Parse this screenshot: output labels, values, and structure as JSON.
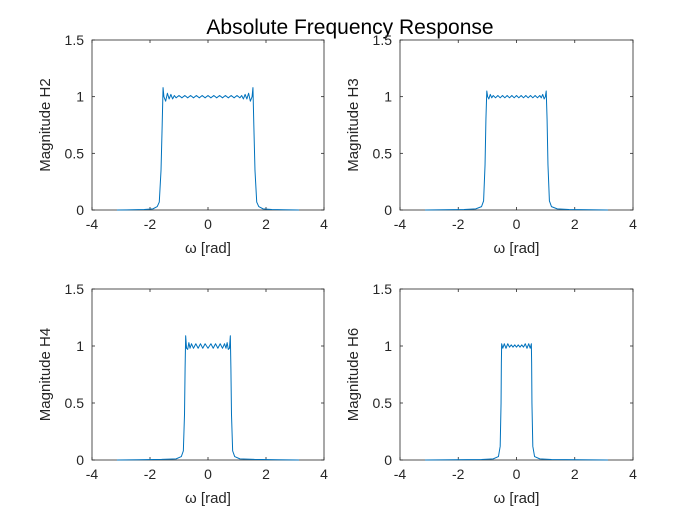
{
  "figure": {
    "title": "Absolute Frequency Response"
  },
  "colors": {
    "line": "#0072bd",
    "axes": "#262626",
    "background": "#ffffff"
  },
  "chart_data": [
    {
      "type": "line",
      "xlabel": "ω [rad]",
      "ylabel": "Magnitude H2",
      "xlim": [
        -4,
        4
      ],
      "ylim": [
        0,
        1.5
      ],
      "xticks": [
        "-4",
        "-2",
        "0",
        "2",
        "4"
      ],
      "yticks": [
        "0",
        "0.5",
        "1",
        "1.5"
      ],
      "series": [
        {
          "points": [
            [
              -3.14,
              0.0
            ],
            [
              -2.6,
              0.002
            ],
            [
              -2.2,
              0.004
            ],
            [
              -1.9,
              0.01
            ],
            [
              -1.75,
              0.03
            ],
            [
              -1.68,
              0.07
            ],
            [
              -1.62,
              0.35
            ],
            [
              -1.58,
              0.75
            ],
            [
              -1.55,
              1.08
            ],
            [
              -1.52,
              1.0
            ],
            [
              -1.46,
              0.96
            ],
            [
              -1.4,
              1.03
            ],
            [
              -1.34,
              0.98
            ],
            [
              -1.28,
              1.02
            ],
            [
              -1.22,
              0.98
            ],
            [
              -1.16,
              1.01
            ],
            [
              -1.1,
              0.99
            ],
            [
              -1.0,
              1.01
            ],
            [
              -0.9,
              0.99
            ],
            [
              -0.8,
              1.01
            ],
            [
              -0.7,
              0.99
            ],
            [
              -0.6,
              1.01
            ],
            [
              -0.5,
              0.99
            ],
            [
              -0.4,
              1.01
            ],
            [
              -0.3,
              0.99
            ],
            [
              -0.2,
              1.01
            ],
            [
              -0.1,
              0.99
            ],
            [
              0.0,
              1.01
            ],
            [
              0.1,
              0.99
            ],
            [
              0.2,
              1.01
            ],
            [
              0.3,
              0.99
            ],
            [
              0.4,
              1.01
            ],
            [
              0.5,
              0.99
            ],
            [
              0.6,
              1.01
            ],
            [
              0.7,
              0.99
            ],
            [
              0.8,
              1.01
            ],
            [
              0.9,
              0.99
            ],
            [
              1.0,
              1.01
            ],
            [
              1.1,
              0.99
            ],
            [
              1.16,
              1.01
            ],
            [
              1.22,
              0.98
            ],
            [
              1.28,
              1.02
            ],
            [
              1.34,
              0.98
            ],
            [
              1.4,
              1.03
            ],
            [
              1.46,
              0.96
            ],
            [
              1.52,
              1.0
            ],
            [
              1.55,
              1.08
            ],
            [
              1.58,
              0.75
            ],
            [
              1.62,
              0.35
            ],
            [
              1.68,
              0.07
            ],
            [
              1.75,
              0.03
            ],
            [
              1.9,
              0.01
            ],
            [
              2.2,
              0.004
            ],
            [
              2.6,
              0.002
            ],
            [
              3.14,
              0.0
            ]
          ]
        }
      ]
    },
    {
      "type": "line",
      "xlabel": "ω [rad]",
      "ylabel": "Magnitude H3",
      "xlim": [
        -4,
        4
      ],
      "ylim": [
        0,
        1.5
      ],
      "xticks": [
        "-4",
        "-2",
        "0",
        "2",
        "4"
      ],
      "yticks": [
        "0",
        "0.5",
        "1",
        "1.5"
      ],
      "series": [
        {
          "points": [
            [
              -3.14,
              0.0
            ],
            [
              -2.5,
              0.002
            ],
            [
              -1.8,
              0.004
            ],
            [
              -1.4,
              0.01
            ],
            [
              -1.2,
              0.03
            ],
            [
              -1.13,
              0.08
            ],
            [
              -1.08,
              0.4
            ],
            [
              -1.05,
              0.8
            ],
            [
              -1.02,
              1.05
            ],
            [
              -0.99,
              1.0
            ],
            [
              -0.95,
              0.98
            ],
            [
              -0.9,
              1.02
            ],
            [
              -0.85,
              0.99
            ],
            [
              -0.8,
              1.01
            ],
            [
              -0.72,
              0.99
            ],
            [
              -0.64,
              1.01
            ],
            [
              -0.56,
              0.99
            ],
            [
              -0.48,
              1.01
            ],
            [
              -0.4,
              0.99
            ],
            [
              -0.32,
              1.01
            ],
            [
              -0.24,
              0.99
            ],
            [
              -0.16,
              1.01
            ],
            [
              -0.08,
              0.99
            ],
            [
              0.0,
              1.01
            ],
            [
              0.08,
              0.99
            ],
            [
              0.16,
              1.01
            ],
            [
              0.24,
              0.99
            ],
            [
              0.32,
              1.01
            ],
            [
              0.4,
              0.99
            ],
            [
              0.48,
              1.01
            ],
            [
              0.56,
              0.99
            ],
            [
              0.64,
              1.01
            ],
            [
              0.72,
              0.99
            ],
            [
              0.8,
              1.01
            ],
            [
              0.85,
              0.99
            ],
            [
              0.9,
              1.02
            ],
            [
              0.95,
              0.98
            ],
            [
              0.99,
              1.0
            ],
            [
              1.02,
              1.05
            ],
            [
              1.05,
              0.8
            ],
            [
              1.08,
              0.4
            ],
            [
              1.13,
              0.08
            ],
            [
              1.2,
              0.03
            ],
            [
              1.4,
              0.01
            ],
            [
              1.8,
              0.004
            ],
            [
              2.5,
              0.002
            ],
            [
              3.14,
              0.0
            ]
          ]
        }
      ]
    },
    {
      "type": "line",
      "xlabel": "ω [rad]",
      "ylabel": "Magnitude H4",
      "xlim": [
        -4,
        4
      ],
      "ylim": [
        0,
        1.5
      ],
      "xticks": [
        "-4",
        "-2",
        "0",
        "2",
        "4"
      ],
      "yticks": [
        "0",
        "0.5",
        "1",
        "1.5"
      ],
      "series": [
        {
          "points": [
            [
              -3.14,
              0.0
            ],
            [
              -2.4,
              0.002
            ],
            [
              -1.6,
              0.005
            ],
            [
              -1.1,
              0.01
            ],
            [
              -0.92,
              0.03
            ],
            [
              -0.85,
              0.08
            ],
            [
              -0.81,
              0.4
            ],
            [
              -0.79,
              0.8
            ],
            [
              -0.77,
              1.09
            ],
            [
              -0.74,
              0.98
            ],
            [
              -0.7,
              0.97
            ],
            [
              -0.66,
              1.03
            ],
            [
              -0.62,
              0.98
            ],
            [
              -0.57,
              1.02
            ],
            [
              -0.5,
              0.98
            ],
            [
              -0.42,
              1.02
            ],
            [
              -0.34,
              0.98
            ],
            [
              -0.26,
              1.02
            ],
            [
              -0.18,
              0.98
            ],
            [
              -0.1,
              1.02
            ],
            [
              0.0,
              0.98
            ],
            [
              0.1,
              1.02
            ],
            [
              0.18,
              0.98
            ],
            [
              0.26,
              1.02
            ],
            [
              0.34,
              0.98
            ],
            [
              0.42,
              1.02
            ],
            [
              0.5,
              0.98
            ],
            [
              0.57,
              1.02
            ],
            [
              0.62,
              0.98
            ],
            [
              0.66,
              1.03
            ],
            [
              0.7,
              0.97
            ],
            [
              0.74,
              0.98
            ],
            [
              0.77,
              1.09
            ],
            [
              0.79,
              0.8
            ],
            [
              0.81,
              0.4
            ],
            [
              0.85,
              0.08
            ],
            [
              0.92,
              0.03
            ],
            [
              1.1,
              0.01
            ],
            [
              1.6,
              0.005
            ],
            [
              2.4,
              0.002
            ],
            [
              3.14,
              0.0
            ]
          ]
        }
      ]
    },
    {
      "type": "line",
      "xlabel": "ω [rad]",
      "ylabel": "Magnitude H6",
      "xlim": [
        -4,
        4
      ],
      "ylim": [
        0,
        1.5
      ],
      "xticks": [
        "-4",
        "-2",
        "0",
        "2",
        "4"
      ],
      "yticks": [
        "0",
        "0.5",
        "1",
        "1.5"
      ],
      "series": [
        {
          "points": [
            [
              -3.14,
              0.0
            ],
            [
              -2.2,
              0.002
            ],
            [
              -1.2,
              0.004
            ],
            [
              -0.8,
              0.01
            ],
            [
              -0.62,
              0.03
            ],
            [
              -0.56,
              0.12
            ],
            [
              -0.53,
              0.5
            ],
            [
              -0.52,
              0.85
            ],
            [
              -0.51,
              1.02
            ],
            [
              -0.47,
              0.98
            ],
            [
              -0.42,
              1.02
            ],
            [
              -0.36,
              0.98
            ],
            [
              -0.3,
              1.02
            ],
            [
              -0.24,
              0.99
            ],
            [
              -0.18,
              1.01
            ],
            [
              -0.12,
              0.99
            ],
            [
              -0.06,
              1.01
            ],
            [
              0.0,
              0.99
            ],
            [
              0.06,
              1.01
            ],
            [
              0.12,
              0.99
            ],
            [
              0.18,
              1.01
            ],
            [
              0.24,
              0.99
            ],
            [
              0.3,
              1.02
            ],
            [
              0.36,
              0.98
            ],
            [
              0.42,
              1.02
            ],
            [
              0.47,
              0.98
            ],
            [
              0.51,
              1.02
            ],
            [
              0.52,
              0.85
            ],
            [
              0.53,
              0.5
            ],
            [
              0.56,
              0.12
            ],
            [
              0.62,
              0.03
            ],
            [
              0.8,
              0.01
            ],
            [
              1.2,
              0.004
            ],
            [
              2.2,
              0.002
            ],
            [
              3.14,
              0.0
            ]
          ]
        }
      ]
    }
  ]
}
